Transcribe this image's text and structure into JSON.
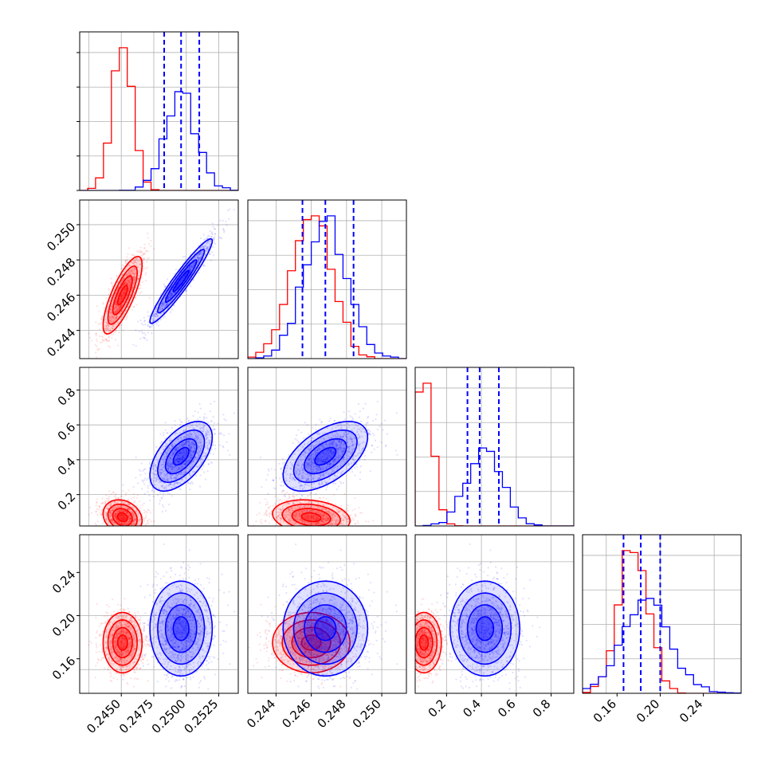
{
  "chart_data": {
    "type": "scatter",
    "subtype": "corner",
    "grid": true,
    "params": [
      {
        "range": [
          0.2418,
          0.254
        ]
      },
      {
        "range": [
          0.2424,
          0.2514
        ]
      },
      {
        "range": [
          0.02,
          0.93
        ]
      },
      {
        "range": [
          0.128,
          0.275
        ]
      }
    ],
    "tick_labels": {
      "x": [
        [
          "0.2450",
          "0.2475",
          "0.2500",
          "0.2525"
        ],
        [
          "0.244",
          "0.246",
          "0.248",
          "0.250"
        ],
        [
          "0.2",
          "0.4",
          "0.6",
          "0.8"
        ],
        [
          "0.16",
          "0.20",
          "0.24"
        ]
      ],
      "y": [
        [],
        [
          "0.244",
          "0.246",
          "0.248",
          "0.250"
        ],
        [
          "0.2",
          "0.4",
          "0.6",
          "0.8"
        ],
        [
          "0.16",
          "0.20",
          "0.24"
        ]
      ]
    },
    "series": [
      {
        "color": "#ff0000",
        "mean": [
          0.2451,
          0.246,
          0.07,
          0.175
        ],
        "std": [
          0.00075,
          0.0011,
          0.05,
          0.014
        ],
        "corr": {
          "0-1": 0.78,
          "0-2": -0.2,
          "0-3": 0.0,
          "1-2": -0.2,
          "1-3": 0.0,
          "2-3": 0.0
        }
      },
      {
        "color": "#0000ff",
        "mean": [
          0.2496,
          0.2468,
          0.42,
          0.188
        ],
        "std": [
          0.0012,
          0.0012,
          0.1,
          0.022
        ],
        "corr": {
          "0-1": 0.95,
          "0-2": 0.55,
          "0-3": 0.0,
          "1-2": 0.55,
          "1-3": 0.0,
          "2-3": 0.0
        }
      }
    ],
    "quantile_lines": {
      "color": "#0000ff",
      "values": [
        [
          0.2483,
          0.2496,
          0.251
        ],
        [
          0.2455,
          0.2468,
          0.2484
        ],
        [
          0.32,
          0.39,
          0.5
        ],
        [
          0.166,
          0.182,
          0.2
        ]
      ]
    }
  }
}
